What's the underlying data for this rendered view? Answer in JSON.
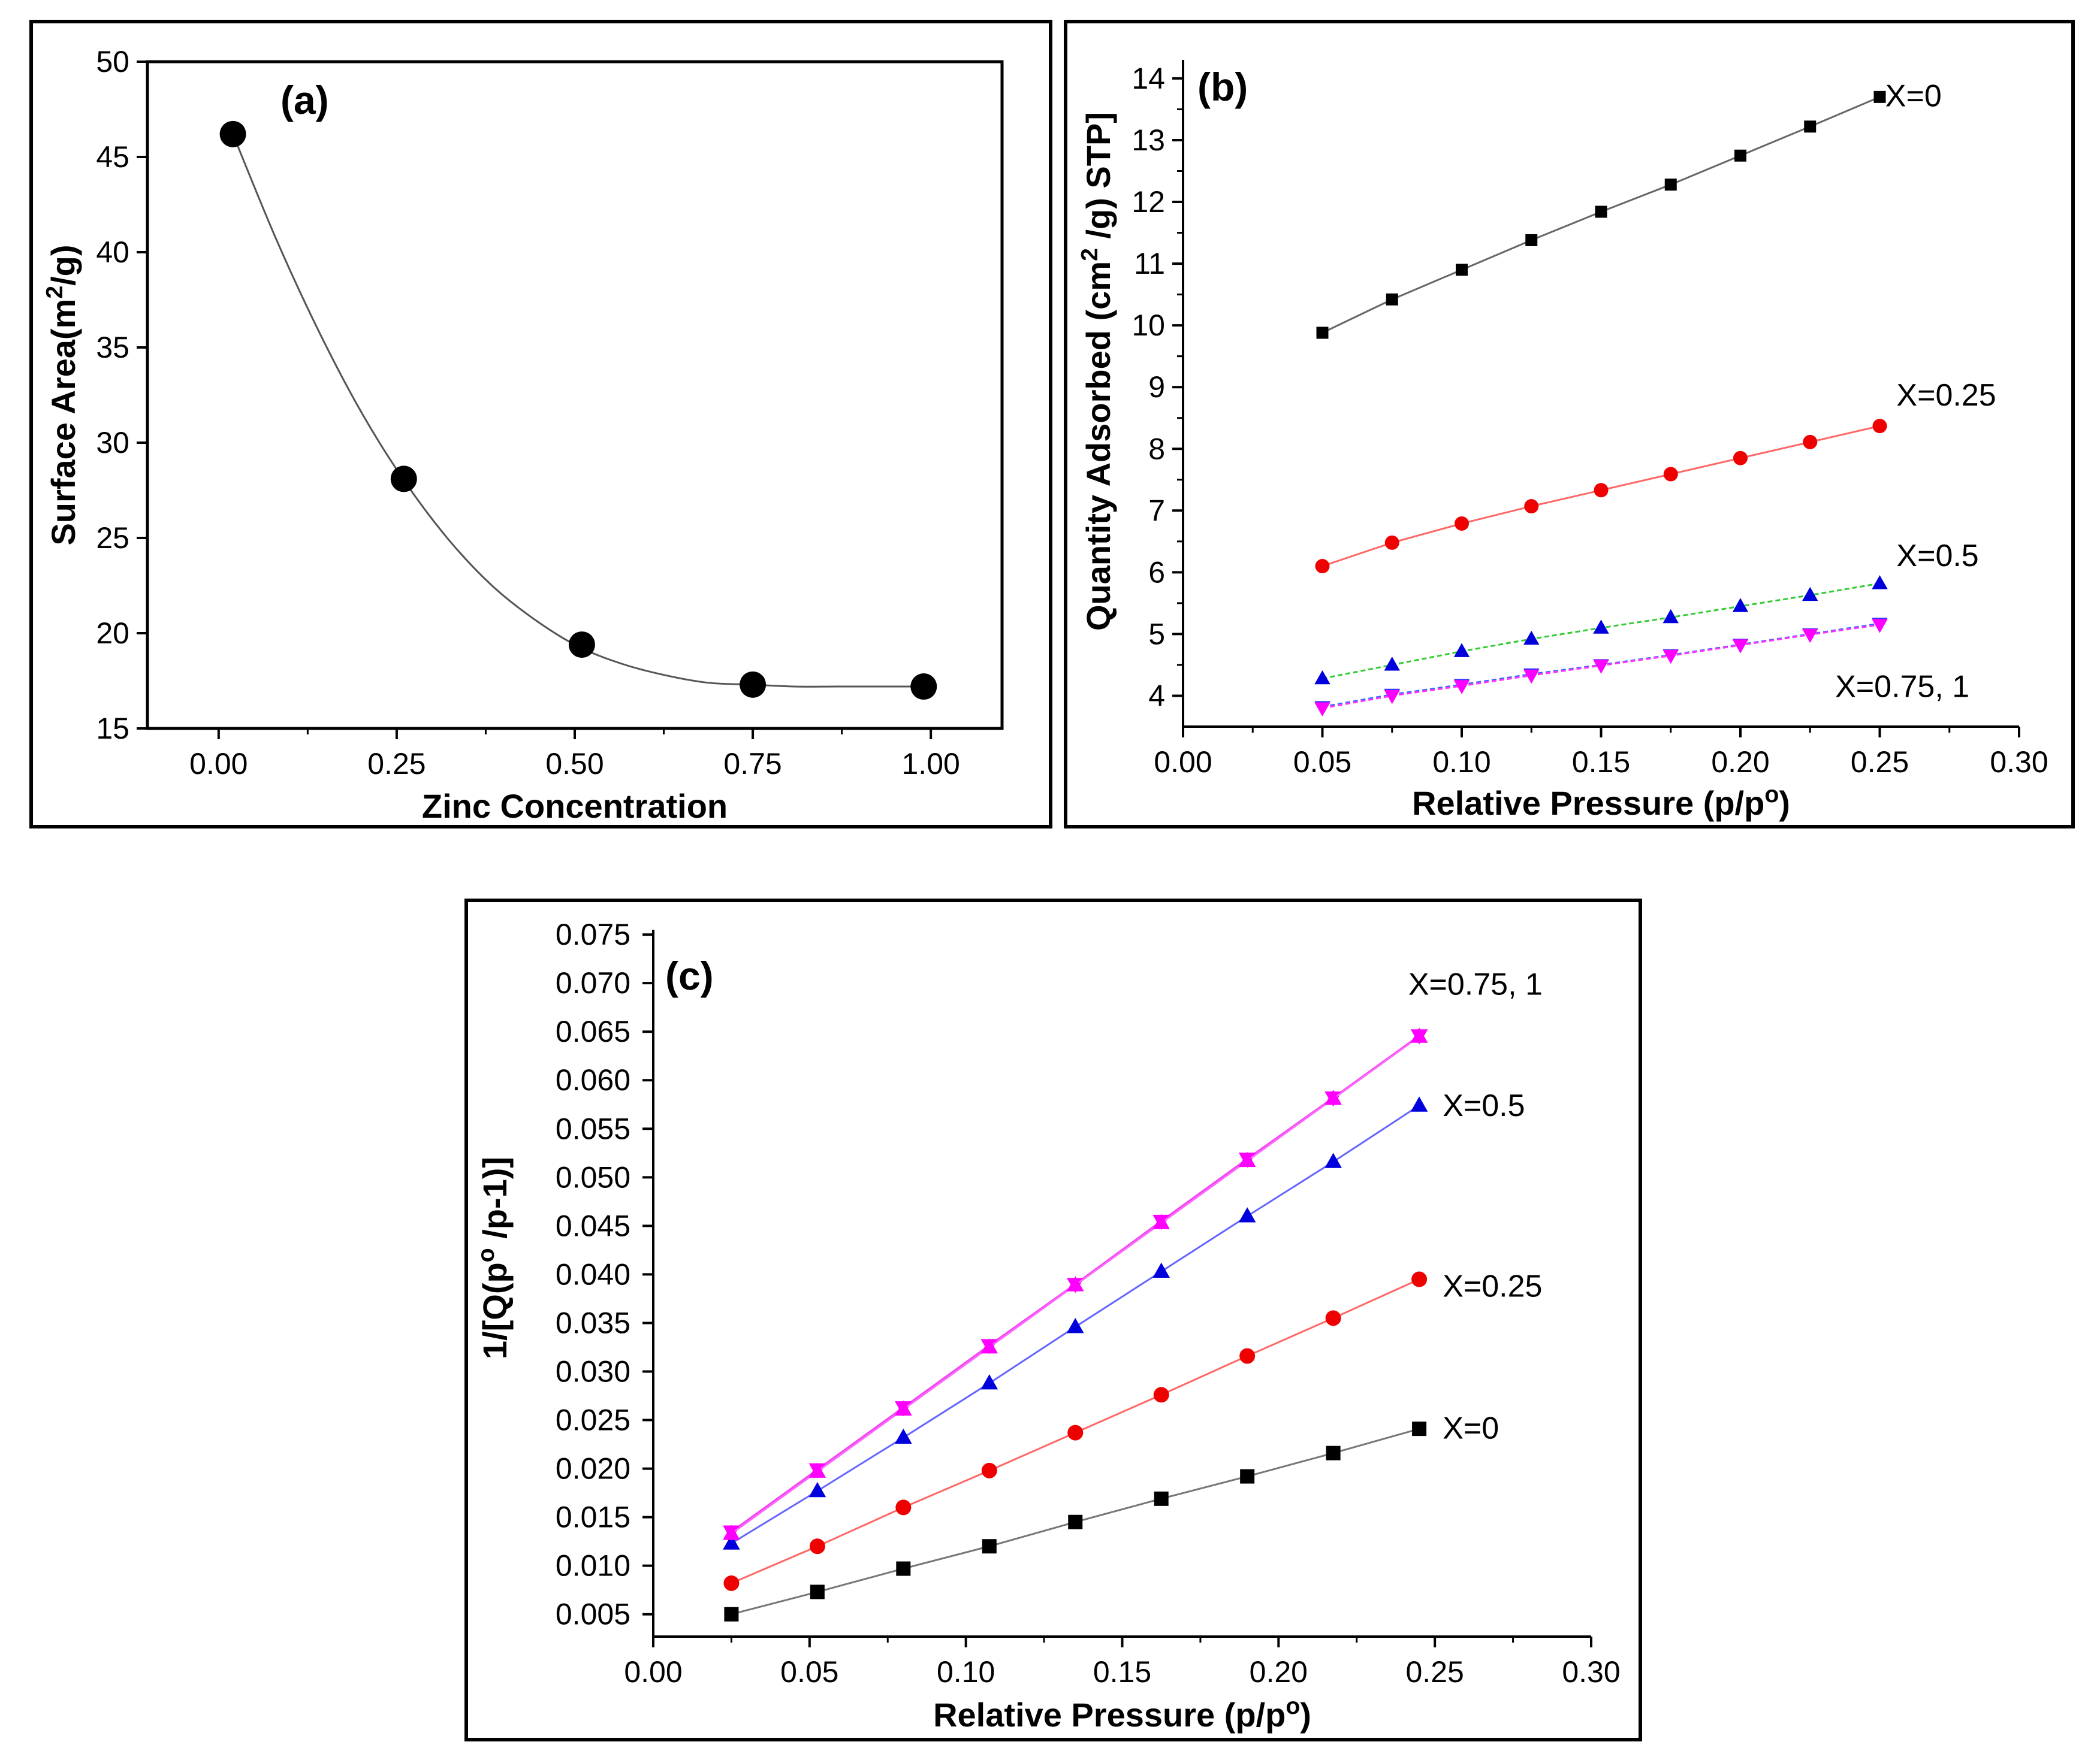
{
  "figure": {
    "panels": [
      "(a)",
      "(b)",
      "(c)"
    ]
  },
  "chart_data": [
    {
      "id": "a",
      "type": "scatter",
      "panel_label": "(a)",
      "title": "",
      "xlabel": "Zinc Concentration",
      "ylabel": "Surface Area(m²/g)",
      "ylabel_base": "Surface Area(m",
      "ylabel_sup": "2",
      "ylabel_end": "/g)",
      "xlim": [
        -0.1,
        1.1
      ],
      "ylim": [
        15,
        50
      ],
      "xticks": [
        0.0,
        0.25,
        0.5,
        0.75,
        1.0
      ],
      "xtick_labels": [
        "0.00",
        "0.25",
        "0.50",
        "0.75",
        "1.00"
      ],
      "yticks": [
        15,
        20,
        25,
        30,
        35,
        40,
        45,
        50
      ],
      "ytick_labels": [
        "15",
        "20",
        "25",
        "30",
        "35",
        "40",
        "45",
        "50"
      ],
      "grid": false,
      "series": [
        {
          "name": "Surface Area",
          "color": "#000000",
          "line_color": "#555555",
          "marker": "circle",
          "x": [
            0.02,
            0.26,
            0.51,
            0.75,
            0.99
          ],
          "y": [
            46.2,
            28.1,
            19.4,
            17.3,
            17.2
          ],
          "curve_y": [
            46.2,
            40.7,
            35.8,
            31.5,
            27.9,
            24.9,
            22.5,
            20.7,
            19.3,
            18.4,
            17.8,
            17.4,
            17.3,
            17.2,
            17.2,
            17.2,
            17.2
          ]
        }
      ]
    },
    {
      "id": "b",
      "type": "line",
      "panel_label": "(b)",
      "title": "",
      "xlabel": "Relative Pressure (p/pᵒ)",
      "xlabel_base": "Relative Pressure (p/p",
      "xlabel_sup": "o",
      "xlabel_end": ")",
      "ylabel": "Quantity Adsorbed (cm² /g) STP]",
      "ylabel_base": "Quantity Adsorbed (cm",
      "ylabel_sup": "2",
      "ylabel_end": " /g) STP]",
      "xlim": [
        0.0,
        0.3
      ],
      "ylim": [
        3.5,
        14.3
      ],
      "xticks": [
        0.0,
        0.05,
        0.1,
        0.15,
        0.2,
        0.25,
        0.3
      ],
      "xtick_labels": [
        "0.00",
        "0.05",
        "0.10",
        "0.15",
        "0.20",
        "0.25",
        "0.30"
      ],
      "yticks": [
        4,
        5,
        6,
        7,
        8,
        9,
        10,
        11,
        12,
        13,
        14
      ],
      "ytick_labels": [
        "4",
        "5",
        "6",
        "7",
        "8",
        "9",
        "10",
        "11",
        "12",
        "13",
        "14"
      ],
      "grid": false,
      "x": [
        0.05,
        0.075,
        0.1,
        0.125,
        0.15,
        0.175,
        0.2,
        0.225,
        0.25
      ],
      "series": [
        {
          "name": "X=0",
          "label": "X=0",
          "color": "#000000",
          "line_color": "#666666",
          "marker": "square",
          "values": [
            9.88,
            10.42,
            10.9,
            11.38,
            11.84,
            12.28,
            12.75,
            13.22,
            13.7
          ]
        },
        {
          "name": "X=0.25",
          "label": "X=0.25",
          "color": "#ee0000",
          "line_color": "#ff6666",
          "marker": "circle",
          "values": [
            6.1,
            6.48,
            6.79,
            7.07,
            7.33,
            7.59,
            7.85,
            8.11,
            8.37
          ]
        },
        {
          "name": "X=0.5",
          "label": "X=0.5",
          "color": "#0000dd",
          "line_color": "#33cc33",
          "marker": "triangle-up",
          "values": [
            4.28,
            4.5,
            4.72,
            4.92,
            5.1,
            5.27,
            5.45,
            5.63,
            5.82
          ]
        },
        {
          "name": "X=0.75",
          "label": "",
          "color": "#3333ff",
          "line_color": "#3366ff",
          "marker": "triangle-down",
          "values": [
            3.82,
            4.02,
            4.18,
            4.35,
            4.5,
            4.66,
            4.83,
            5.0,
            5.17
          ]
        },
        {
          "name": "X=1",
          "label": "",
          "color": "#ff00ff",
          "line_color": "#ff33ff",
          "marker": "triangle-down",
          "values": [
            3.8,
            4.0,
            4.16,
            4.33,
            4.49,
            4.65,
            4.82,
            4.99,
            5.15
          ]
        }
      ],
      "annotations": [
        {
          "text": "X=0",
          "x": 0.252,
          "y": 13.55
        },
        {
          "text": "X=0.25",
          "x": 0.256,
          "y": 8.7
        },
        {
          "text": "X=0.5",
          "x": 0.256,
          "y": 6.1
        },
        {
          "text": "X=0.75, 1",
          "x": 0.234,
          "y": 3.98
        }
      ]
    },
    {
      "id": "c",
      "type": "line",
      "panel_label": "(c)",
      "title": "",
      "xlabel": "Relative Pressure (p/pᵒ)",
      "xlabel_base": "Relative Pressure (p/p",
      "xlabel_sup": "o",
      "xlabel_end": ")",
      "ylabel": "1/[Q(pᵒ /p-1)]",
      "ylabel_base": "1/[Q(p",
      "ylabel_sup": "o",
      "ylabel_end": " /p-1)]",
      "xlim": [
        0.0,
        0.3
      ],
      "ylim": [
        0.0027,
        0.0755
      ],
      "xticks": [
        0.0,
        0.05,
        0.1,
        0.15,
        0.2,
        0.25,
        0.3
      ],
      "xtick_labels": [
        "0.00",
        "0.05",
        "0.10",
        "0.15",
        "0.20",
        "0.25",
        "0.30"
      ],
      "yticks": [
        0.005,
        0.01,
        0.015,
        0.02,
        0.025,
        0.03,
        0.035,
        0.04,
        0.045,
        0.05,
        0.055,
        0.06,
        0.065,
        0.07,
        0.075
      ],
      "ytick_labels": [
        "0.005",
        "0.010",
        "0.015",
        "0.020",
        "0.025",
        "0.030",
        "0.035",
        "0.040",
        "0.045",
        "0.050",
        "0.055",
        "0.060",
        "0.065",
        "0.070",
        "0.075"
      ],
      "grid": false,
      "x": [
        0.025,
        0.0525,
        0.08,
        0.1075,
        0.135,
        0.1625,
        0.19,
        0.2175,
        0.245
      ],
      "series": [
        {
          "name": "X=0",
          "label": "X=0",
          "color": "#000000",
          "line_color": "#777777",
          "marker": "square",
          "values": [
            0.005,
            0.0073,
            0.0097,
            0.012,
            0.0145,
            0.0169,
            0.0192,
            0.0216,
            0.0241
          ]
        },
        {
          "name": "X=0.25",
          "label": "X=0.25",
          "color": "#ee0000",
          "line_color": "#ff6666",
          "marker": "circle",
          "values": [
            0.0082,
            0.012,
            0.016,
            0.0198,
            0.0237,
            0.0276,
            0.0316,
            0.0355,
            0.0395
          ]
        },
        {
          "name": "X=0.5",
          "label": "X=0.5",
          "color": "#0000dd",
          "line_color": "#6666ff",
          "marker": "triangle-up",
          "values": [
            0.0123,
            0.0177,
            0.0232,
            0.0288,
            0.0346,
            0.0403,
            0.046,
            0.0516,
            0.0574
          ]
        },
        {
          "name": "X=0.75",
          "label": "",
          "color": "#ff00ff",
          "line_color": "#ee44ee",
          "marker": "triangle-down",
          "values": [
            0.0135,
            0.0199,
            0.0263,
            0.0327,
            0.039,
            0.0455,
            0.0519,
            0.0582,
            0.0646
          ]
        },
        {
          "name": "X=1",
          "label": "",
          "color": "#ff00ff",
          "line_color": "#ff66ff",
          "marker": "triangle-up",
          "values": [
            0.0133,
            0.0197,
            0.0261,
            0.0325,
            0.0389,
            0.0453,
            0.0517,
            0.0581,
            0.0645
          ]
        }
      ],
      "annotations": [
        {
          "text": "X=0.75, 1",
          "x": 0.2415,
          "y": 0.0688
        },
        {
          "text": "X=0.5",
          "x": 0.2525,
          "y": 0.0563
        },
        {
          "text": "X=0.25",
          "x": 0.2525,
          "y": 0.0377
        },
        {
          "text": "X=0",
          "x": 0.2525,
          "y": 0.0231
        }
      ]
    }
  ]
}
